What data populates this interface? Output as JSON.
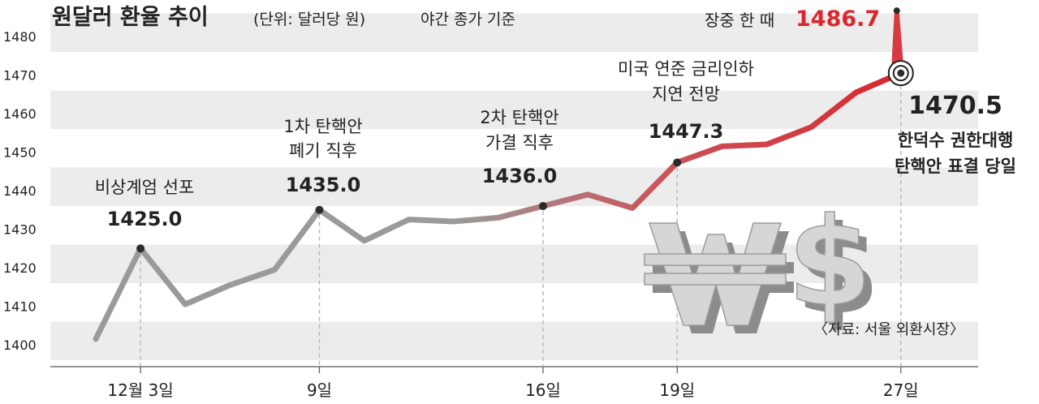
{
  "chart_data": {
    "type": "line",
    "title": "원달러 환율 추이",
    "unit": "(단위: 달러당 원)",
    "subtitle": "야간 종가 기준",
    "source": "〈자료: 서울 외환시장〉",
    "ylim": [
      1396,
      1488
    ],
    "yticks": [
      "1400",
      "1410",
      "1420",
      "1430",
      "1440",
      "1450",
      "1460",
      "1470",
      "1480"
    ],
    "xticks": [
      {
        "label": "12월 3일",
        "i": 1
      },
      {
        "label": "9일",
        "i": 5
      },
      {
        "label": "16일",
        "i": 10
      },
      {
        "label": "19일",
        "i": 13
      },
      {
        "label": "27일",
        "i": 18
      }
    ],
    "series": [
      {
        "values": [
          1401.5,
          1425.0,
          1410.5,
          1415.5,
          1419.5,
          1435.0,
          1427.0,
          1432.5,
          1432.0,
          1433.0,
          1436.0,
          1439.0,
          1435.5,
          1447.3,
          1451.5,
          1452.0,
          1456.5,
          1465.5,
          1470.5
        ]
      }
    ],
    "intraday_high": {
      "label": "장중 한 때",
      "value": "1486.7",
      "v": 1486.7
    },
    "annotations": [
      {
        "i": 1,
        "value_text": "1425.0",
        "lines": [
          "비상계엄 선포"
        ]
      },
      {
        "i": 5,
        "value_text": "1435.0",
        "lines": [
          "1차 탄핵안",
          "폐기 직후"
        ]
      },
      {
        "i": 10,
        "value_text": "1436.0",
        "lines": [
          "2차 탄핵안",
          "가결 직후"
        ]
      },
      {
        "i": 13,
        "value_text": "1447.3",
        "lines": [
          "미국 연준 금리인하",
          "지연 전망"
        ]
      },
      {
        "i": 18,
        "value_text": "1470.5",
        "lines": [
          "한덕수 권한대행",
          "탄핵안 표결 당일"
        ]
      }
    ],
    "colors": {
      "gray": "#9a9a9a",
      "red": "#d93a3f",
      "band": "#ececec",
      "point": "#2b2b2b"
    },
    "decoration": "won-dollar-symbol-icon"
  }
}
